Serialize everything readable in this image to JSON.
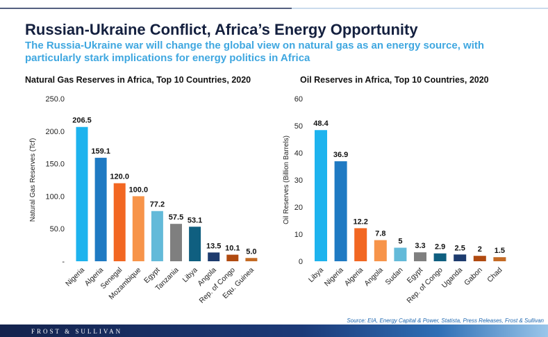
{
  "header": {
    "title": "Russian-Ukraine Conflict, Africa’s Energy Opportunity",
    "subtitle": "The Russia-Ukraine war will change the global view on natural gas as an energy source, with particularly stark implications for energy politics in Africa"
  },
  "colors": {
    "title": "#14203f",
    "subtitle": "#3fa7e0",
    "footer": "#1a2a55",
    "source": "#1b66b0"
  },
  "chart_data": [
    {
      "type": "bar",
      "title": "Natural Gas Reserves in Africa, Top 10 Countries, 2020",
      "ylabel": "Natural Gas Reserves (Tcf)",
      "xlabel": "",
      "categories": [
        "Nigeria",
        "Algeria",
        "Senegal",
        "Mozambique",
        "Egypt",
        "Tanzania",
        "Libya",
        "Angola",
        "Rep. of Congo",
        "Equ. Guinea"
      ],
      "values": [
        206.5,
        159.1,
        120.0,
        100.0,
        77.2,
        57.5,
        53.1,
        13.5,
        10.1,
        5.0
      ],
      "value_labels": [
        "206.5",
        "159.1",
        "120.0",
        "100.0",
        "77.2",
        "57.5",
        "53.1",
        "13.5",
        "10.1",
        "5.0"
      ],
      "colors": [
        "#1db3ee",
        "#1f7ac3",
        "#f26722",
        "#f7944a",
        "#63bad9",
        "#7f7f7f",
        "#0f5f80",
        "#1d3b6e",
        "#b04a10",
        "#c46b25"
      ],
      "ylim": [
        0,
        250
      ],
      "yticks": [
        0,
        50,
        100,
        150,
        200,
        250
      ],
      "ytick_labels": [
        "-",
        "50.0",
        "100.0",
        "150.0",
        "200.0",
        "250.0"
      ],
      "grid": false,
      "legend": "none"
    },
    {
      "type": "bar",
      "title": "Oil Reserves in Africa, Top 10 Countries, 2020",
      "ylabel": "Oil Reserves (Billion Barrels)",
      "xlabel": "",
      "categories": [
        "Libya",
        "Nigeria",
        "Algeria",
        "Angola",
        "Sudan",
        "Egypt",
        "Rep. of Congo",
        "Uganda",
        "Gabon",
        "Chad"
      ],
      "values": [
        48.4,
        36.9,
        12.2,
        7.8,
        5,
        3.3,
        2.9,
        2.5,
        2,
        1.5
      ],
      "value_labels": [
        "48.4",
        "36.9",
        "12.2",
        "7.8",
        "5",
        "3.3",
        "2.9",
        "2.5",
        "2",
        "1.5"
      ],
      "colors": [
        "#1db3ee",
        "#1f7ac3",
        "#f26722",
        "#f7944a",
        "#63bad9",
        "#7f7f7f",
        "#0f5f80",
        "#1d3b6e",
        "#b04a10",
        "#c46b25"
      ],
      "ylim": [
        0,
        60
      ],
      "yticks": [
        0,
        10,
        20,
        30,
        40,
        50,
        60
      ],
      "ytick_labels": [
        "0",
        "10",
        "20",
        "30",
        "40",
        "50",
        "60"
      ],
      "grid": false,
      "legend": "none"
    }
  ],
  "source": "Source: EIA, Energy Capital & Power, Statista, Press Releases, Frost & Sullivan",
  "footer": {
    "logo_text": "FROST & SULLIVAN"
  }
}
